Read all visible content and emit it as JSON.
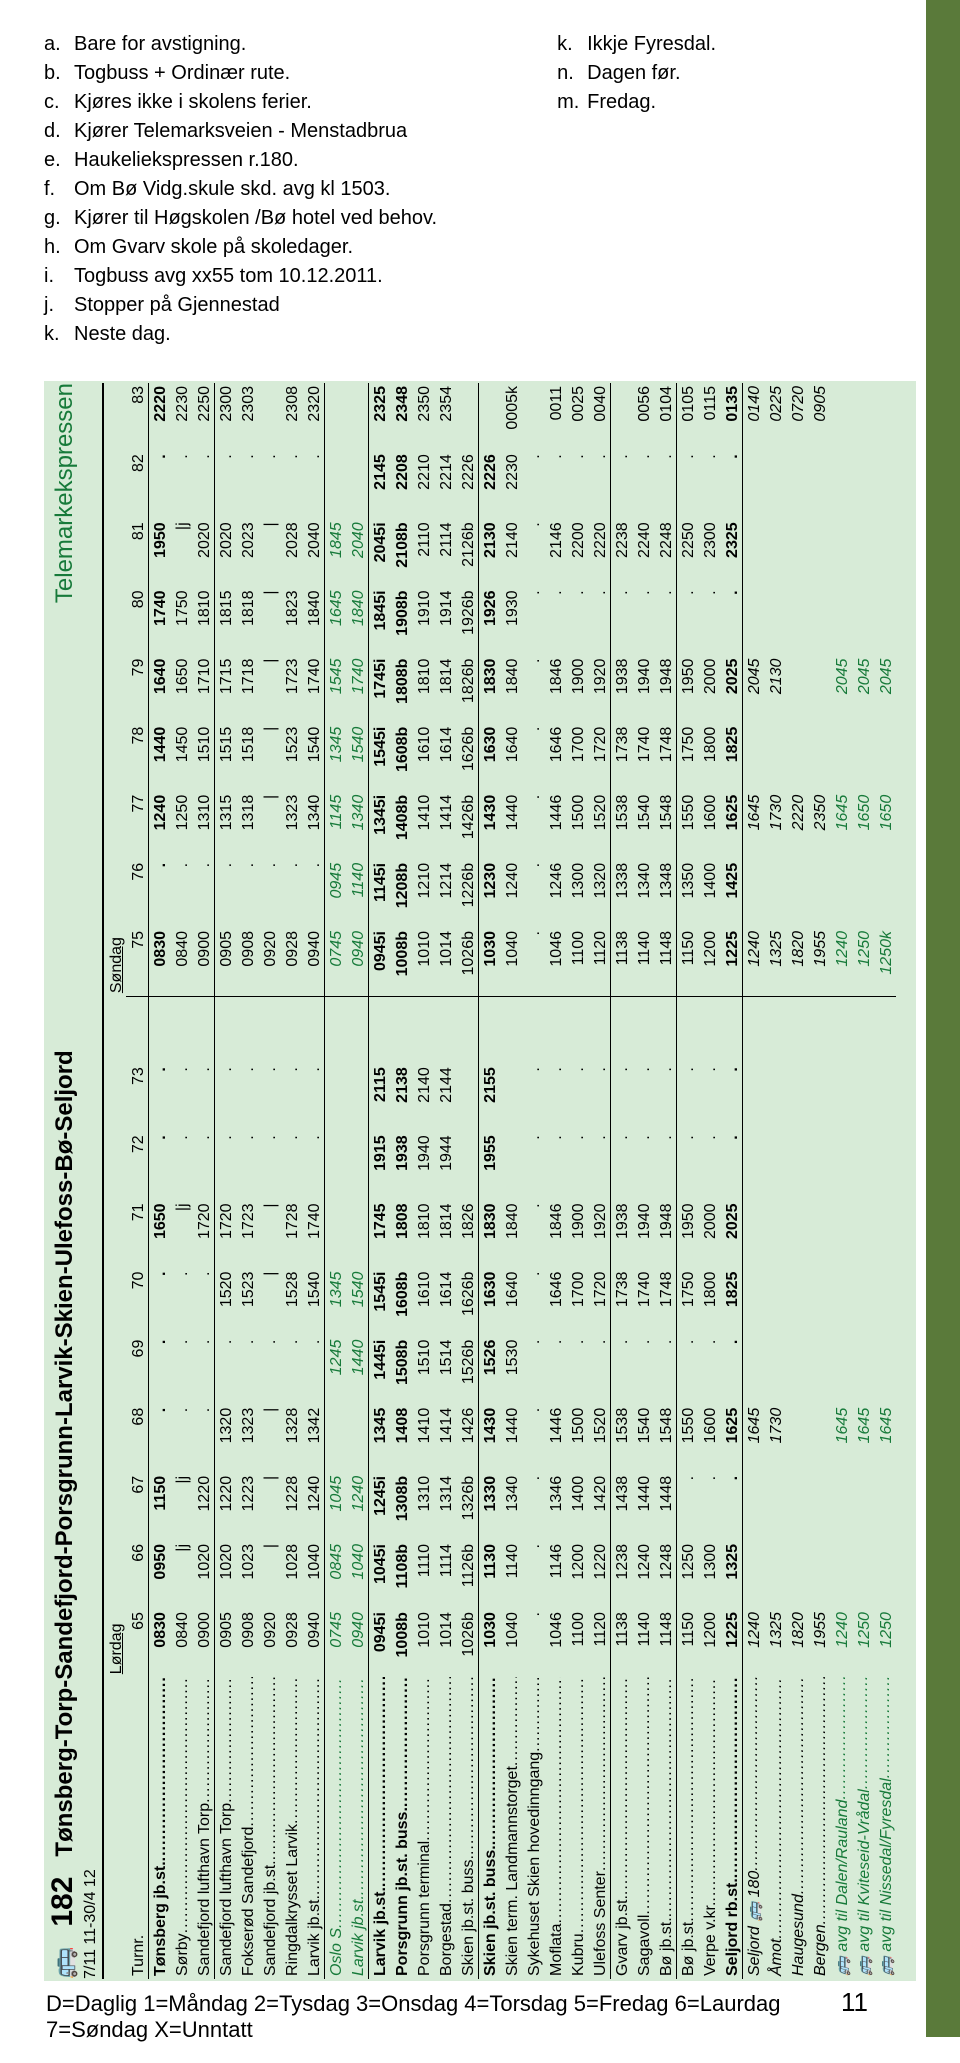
{
  "legend_left": [
    {
      "k": "a.",
      "t": "Bare for avstigning."
    },
    {
      "k": "b.",
      "t": "Togbuss + Ordinær rute."
    },
    {
      "k": "c.",
      "t": "Kjøres ikke i skolens ferier."
    },
    {
      "k": "d.",
      "t": "Kjører Telemarksveien - Menstadbrua"
    },
    {
      "k": "e.",
      "t": "Haukeliekspressen r.180."
    },
    {
      "k": "f.",
      "t": "Om Bø Vidg.skule skd. avg kl 1503."
    },
    {
      "k": "g.",
      "t": "Kjører til Høgskolen /Bø hotel ved behov."
    },
    {
      "k": "h.",
      "t": "Om Gvarv skole på skoledager."
    },
    {
      "k": "i.",
      "t": "Togbuss avg xx55 tom 10.12.2011."
    },
    {
      "k": "j.",
      "t": "Stopper på Gjennestad"
    },
    {
      "k": "k.",
      "t": "Neste dag."
    }
  ],
  "legend_right": [
    {
      "k": "k.",
      "t": "Ikkje Fyresdal."
    },
    {
      "k": "n.",
      "t": "Dagen før."
    },
    {
      "k": "m.",
      "t": "Fredag."
    }
  ],
  "route_number": "182",
  "route_name": "Tønsberg-Torp-Sandefjord-Porsgrunn-Larvik-Skien-Ulefoss-Bø-Seljord",
  "express_label": "Telemarkekspressen",
  "dates": "7/11 11-30/4 12",
  "day1": "Lørdag",
  "day2": "Søndag",
  "day_keys": "D=Daglig 1=Måndag 2=Tysdag 3=Onsdag 4=Torsdag 5=Fredag 6=Laurdag 7=Søndag X=Unntatt",
  "page_number": "11",
  "turnr_label": "Turnr.",
  "columns": [
    "65",
    "66",
    "67",
    "68",
    "69",
    "70",
    "71",
    "72",
    "73",
    "",
    "75",
    "76",
    "77",
    "78",
    "79",
    "80",
    "81",
    "82",
    "83"
  ],
  "day_split_index": 10,
  "sections": [
    {
      "rows": [
        {
          "stop": "Tønsberg jb.st.",
          "bold": true,
          "cells": [
            "0830",
            "0950",
            "1150",
            ".",
            ".",
            ".",
            "1650",
            ".",
            ".",
            "",
            "0830",
            ".",
            "1240",
            "1440",
            "1640",
            "1740",
            "1950",
            ".",
            "2220"
          ]
        },
        {
          "stop": "Sørby",
          "cells": [
            "0840",
            "|j",
            "|j",
            ".",
            ".",
            ".",
            "|j",
            ".",
            ".",
            "",
            "0840",
            ".",
            "1250",
            "1450",
            "1650",
            "1750",
            "|j",
            ".",
            "2230"
          ]
        },
        {
          "stop": "Sandefjord lufthavn Torp",
          "cells": [
            "0900",
            "1020",
            "1220",
            ".",
            ".",
            ".",
            "1720",
            ".",
            ".",
            "",
            "0900",
            ".",
            "1310",
            "1510",
            "1710",
            "1810",
            "2020",
            ".",
            "2250"
          ]
        }
      ]
    },
    {
      "rows": [
        {
          "stop": "Sandefjord lufthavn Torp",
          "cells": [
            "0905",
            "1020",
            "1220",
            "1320",
            ".",
            "1520",
            "1720",
            ".",
            ".",
            "",
            "0905",
            ".",
            "1315",
            "1515",
            "1715",
            "1815",
            "2020",
            ".",
            "2300"
          ]
        },
        {
          "stop": "Fokserød Sandefjord",
          "cells": [
            "0908",
            "1023",
            "1223",
            "1323",
            ".",
            "1523",
            "1723",
            ".",
            ".",
            "",
            "0908",
            ".",
            "1318",
            "1518",
            "1718",
            "1818",
            "2023",
            ".",
            "2303"
          ]
        },
        {
          "stop": "Sandefjord jb.st.",
          "cells": [
            "0920",
            "|",
            "|",
            "|",
            ".",
            "|",
            "|",
            ".",
            ".",
            "",
            "0920",
            ".",
            "|",
            "|",
            "|",
            "|",
            "|",
            ".",
            ""
          ]
        },
        {
          "stop": "Ringdalkrysset Larvik",
          "cells": [
            "0928",
            "1028",
            "1228",
            "1328",
            ".",
            "1528",
            "1728",
            ".",
            ".",
            "",
            "0928",
            ".",
            "1323",
            "1523",
            "1723",
            "1823",
            "2028",
            ".",
            "2308"
          ]
        },
        {
          "stop": "Larvik jb.st.",
          "cells": [
            "0940",
            "1040",
            "1240",
            "1342",
            ".",
            "1540",
            "1740",
            ".",
            ".",
            "",
            "0940",
            ".",
            "1340",
            "1540",
            "1740",
            "1840",
            "2040",
            ".",
            "2320"
          ]
        }
      ]
    },
    {
      "rows": [
        {
          "stop": "Oslo S",
          "style": "italic-green",
          "cells": [
            "0745",
            "0845",
            "1045",
            "",
            "1245",
            "1345",
            "",
            "",
            "",
            "",
            "0745",
            "0945",
            "1145",
            "1345",
            "1545",
            "1645",
            "1845",
            "",
            ""
          ]
        },
        {
          "stop": "Larvik jb.st.",
          "style": "italic-green",
          "cells": [
            "0940",
            "1040",
            "1240",
            "",
            "1440",
            "1540",
            "",
            "",
            "",
            "",
            "0940",
            "1140",
            "1340",
            "1540",
            "1740",
            "1840",
            "2040",
            "",
            ""
          ]
        }
      ]
    },
    {
      "rows": [
        {
          "stop": "Larvik jb.st.",
          "bold": true,
          "cells": [
            "0945i",
            "1045i",
            "1245i",
            "1345",
            "1445i",
            "1545i",
            "1745",
            "1915",
            "2115",
            "",
            "0945i",
            "1145i",
            "1345i",
            "1545i",
            "1745i",
            "1845i",
            "2045i",
            "2145",
            "2325"
          ]
        },
        {
          "stop": "Porsgrunn jb.st. buss.",
          "bold": true,
          "cells": [
            "1008b",
            "1108b",
            "1308b",
            "1408",
            "1508b",
            "1608b",
            "1808",
            "1938",
            "2138",
            "",
            "1008b",
            "1208b",
            "1408b",
            "1608b",
            "1808b",
            "1908b",
            "2108b",
            "2208",
            "2348"
          ]
        },
        {
          "stop": "Porsgrunn terminal",
          "cells": [
            "1010",
            "1110",
            "1310",
            "1410",
            "1510",
            "1610",
            "1810",
            "1940",
            "2140",
            "",
            "1010",
            "1210",
            "1410",
            "1610",
            "1810",
            "1910",
            "2110",
            "2210",
            "2350"
          ]
        },
        {
          "stop": "Borgestad",
          "cells": [
            "1014",
            "1114",
            "1314",
            "1414",
            "1514",
            "1614",
            "1814",
            "1944",
            "2144",
            "",
            "1014",
            "1214",
            "1414",
            "1614",
            "1814",
            "1914",
            "2114",
            "2214",
            "2354"
          ]
        },
        {
          "stop": "Skien jb.st. buss.",
          "cells": [
            "1026b",
            "1126b",
            "1326b",
            "1426",
            "1526b",
            "1626b",
            "1826",
            "",
            "",
            "",
            "1026b",
            "1226b",
            "1426b",
            "1626b",
            "1826b",
            "1926b",
            "2126b",
            "2226",
            ""
          ]
        }
      ]
    },
    {
      "rows": [
        {
          "stop": "Skien jb.st. buss.",
          "bold": true,
          "cells": [
            "1030",
            "1130",
            "1330",
            "1430",
            "1526",
            "1630",
            "1830",
            "1955",
            "2155",
            "",
            "1030",
            "1230",
            "1430",
            "1630",
            "1830",
            "1926",
            "2130",
            "2226",
            ""
          ]
        },
        {
          "stop": "Skien term. Landmannstorget",
          "cells": [
            "1040",
            "1140",
            "1340",
            "1440",
            "1530",
            "1640",
            "1840",
            "",
            "",
            "",
            "1040",
            "1240",
            "1440",
            "1640",
            "1840",
            "1930",
            "2140",
            "2230",
            "0005k"
          ]
        },
        {
          "stop": "Sykehuset Skien hovedinngang",
          "cells": [
            ".",
            ".",
            ".",
            ".",
            ".",
            ".",
            ".",
            ".",
            ".",
            "",
            ".",
            ".",
            ".",
            ".",
            ".",
            ".",
            ".",
            ".",
            ""
          ]
        },
        {
          "stop": "Moflata",
          "cells": [
            "1046",
            "1146",
            "1346",
            "1446",
            ".",
            "1646",
            "1846",
            ".",
            ".",
            "",
            "1046",
            "1246",
            "1446",
            "1646",
            "1846",
            ".",
            "2146",
            ".",
            "0011"
          ]
        },
        {
          "stop": "Kubru",
          "cells": [
            "1100",
            "1200",
            "1400",
            "1500",
            ".",
            "1700",
            "1900",
            ".",
            ".",
            "",
            "1100",
            "1300",
            "1500",
            "1700",
            "1900",
            ".",
            "2200",
            ".",
            "0025"
          ]
        },
        {
          "stop": "Ulefoss Senter",
          "cells": [
            "1120",
            "1220",
            "1420",
            "1520",
            ".",
            "1720",
            "1920",
            ".",
            ".",
            "",
            "1120",
            "1320",
            "1520",
            "1720",
            "1920",
            ".",
            "2220",
            ".",
            "0040"
          ]
        }
      ]
    },
    {
      "rows": [
        {
          "stop": "Gvarv jb.st.",
          "cells": [
            "1138",
            "1238",
            "1438",
            "1538",
            ".",
            "1738",
            "1938",
            ".",
            ".",
            "",
            "1138",
            "1338",
            "1538",
            "1738",
            "1938",
            ".",
            "2238",
            ".",
            ""
          ]
        },
        {
          "stop": "Sagavoll",
          "cells": [
            "1140",
            "1240",
            "1440",
            "1540",
            ".",
            "1740",
            "1940",
            ".",
            ".",
            "",
            "1140",
            "1340",
            "1540",
            "1740",
            "1940",
            ".",
            "2240",
            ".",
            "0056"
          ]
        },
        {
          "stop": "Bø jb.st.",
          "cells": [
            "1148",
            "1248",
            "1448",
            "1548",
            ".",
            "1748",
            "1948",
            ".",
            ".",
            "",
            "1148",
            "1348",
            "1548",
            "1748",
            "1948",
            ".",
            "2248",
            ".",
            "0104"
          ]
        }
      ]
    },
    {
      "rows": [
        {
          "stop": "Bø jb.st",
          "cells": [
            "1150",
            "1250",
            ".",
            "1550",
            ".",
            "1750",
            "1950",
            ".",
            ".",
            "",
            "1150",
            "1350",
            "1550",
            "1750",
            "1950",
            ".",
            "2250",
            ".",
            "0105"
          ]
        },
        {
          "stop": "Verpe v.kr.",
          "cells": [
            "1200",
            "1300",
            ".",
            "1600",
            ".",
            "1800",
            "2000",
            ".",
            ".",
            "",
            "1200",
            "1400",
            "1600",
            "1800",
            "2000",
            ".",
            "2300",
            ".",
            "0115"
          ]
        },
        {
          "stop": "Seljord rb.st.",
          "bold": true,
          "cells": [
            "1225",
            "1325",
            ".",
            "1625",
            ".",
            "1825",
            "2025",
            ".",
            ".",
            "",
            "1225",
            "1425",
            "1625",
            "1825",
            "2025",
            ".",
            "2325",
            ".",
            "0135"
          ]
        }
      ]
    },
    {
      "rows": [
        {
          "stop": "Seljord 🚌 180",
          "style": "italic",
          "cells": [
            "1240",
            "",
            "",
            "1645",
            "",
            "",
            "",
            "",
            "",
            "",
            "1240",
            "",
            "1645",
            "",
            "2045",
            "",
            "",
            "",
            "0140"
          ]
        },
        {
          "stop": "Åmot",
          "style": "italic",
          "cells": [
            "1325",
            "",
            "",
            "1730",
            "",
            "",
            "",
            "",
            "",
            "",
            "1325",
            "",
            "1730",
            "",
            "2130",
            "",
            "",
            "",
            "0225"
          ]
        },
        {
          "stop": "Haugesund",
          "style": "italic",
          "cells": [
            "1820",
            "",
            "",
            "",
            "",
            "",
            "",
            "",
            "",
            "",
            "1820",
            "",
            "2220",
            "",
            "",
            "",
            "",
            "",
            "0720"
          ]
        },
        {
          "stop": "Bergen",
          "style": "italic",
          "cells": [
            "1955",
            "",
            "",
            "",
            "",
            "",
            "",
            "",
            "",
            "",
            "1955",
            "",
            "2350",
            "",
            "",
            "",
            "",
            "",
            "0905"
          ]
        }
      ],
      "noBottom": true
    },
    {
      "rows": [
        {
          "stop": "🚌 avg til Dalen/Rauland",
          "style": "italic-green",
          "cells": [
            "1240",
            "",
            "",
            "1645",
            "",
            "",
            "",
            "",
            "",
            "",
            "1240",
            "",
            "1645",
            "",
            "2045",
            "",
            "",
            "",
            ""
          ]
        },
        {
          "stop": "🚌 avg til Kviteseid-Vrådal",
          "style": "italic-green",
          "cells": [
            "1250",
            "",
            "",
            "1645",
            "",
            "",
            "",
            "",
            "",
            "",
            "1250",
            "",
            "1650",
            "",
            "2045",
            "",
            "",
            "",
            ""
          ]
        },
        {
          "stop": "🚌 avg til Nissedal/Fyresdal",
          "style": "italic-green",
          "cells": [
            "1250",
            "",
            "",
            "1645",
            "",
            "",
            "",
            "",
            "",
            "",
            "1250k",
            "",
            "1650",
            "",
            "2045",
            "",
            "",
            "",
            ""
          ]
        }
      ],
      "noBottom": true
    }
  ]
}
